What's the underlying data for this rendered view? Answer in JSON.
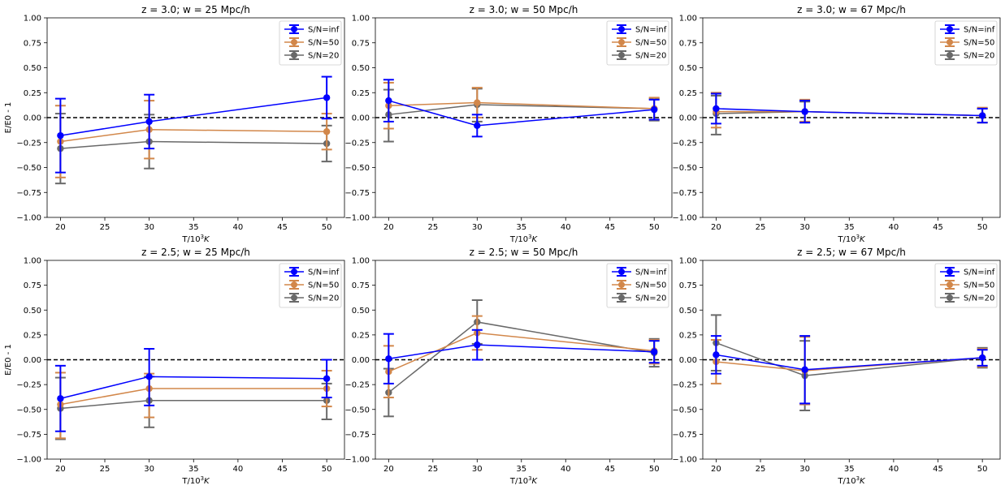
{
  "figure": {
    "background": "#ffffff",
    "series_styles": [
      {
        "color": "#0000ff"
      },
      {
        "color": "#d2874a"
      },
      {
        "color": "#696969"
      }
    ]
  },
  "chart_data": [
    {
      "type": "line",
      "title": "z = 3.0; w = 25 Mpc/h",
      "xlabel": "T/10",
      "xlabel_sup": "3",
      "xlabel_unit": "K",
      "ylabel": "E/E0 - 1",
      "xlim": [
        18.5,
        52
      ],
      "ylim": [
        -1.0,
        1.0
      ],
      "xticks": [
        "20",
        "25",
        "30",
        "35",
        "40",
        "45",
        "50"
      ],
      "yticks": [
        "−1.00",
        "−0.75",
        "−0.50",
        "−0.25",
        "0.00",
        "0.25",
        "0.50",
        "0.75",
        "1.00"
      ],
      "reference_line": 0,
      "legend_position": "top-right",
      "x": [
        20,
        30,
        50
      ],
      "series": [
        {
          "name": "S/N=inf",
          "values": [
            -0.18,
            -0.04,
            0.2
          ],
          "err_lo": [
            -0.55,
            -0.31,
            -0.01
          ],
          "err_hi": [
            0.19,
            0.23,
            0.41
          ]
        },
        {
          "name": "S/N=50",
          "values": [
            -0.24,
            -0.12,
            -0.14
          ],
          "err_lo": [
            -0.6,
            -0.41,
            -0.32
          ],
          "err_hi": [
            0.12,
            0.17,
            0.04
          ]
        },
        {
          "name": "S/N=20",
          "values": [
            -0.31,
            -0.24,
            -0.26
          ],
          "err_lo": [
            -0.66,
            -0.51,
            -0.44
          ],
          "err_hi": [
            0.04,
            0.03,
            -0.08
          ]
        }
      ]
    },
    {
      "type": "line",
      "title": "z = 3.0; w = 50 Mpc/h",
      "xlabel": "T/10",
      "xlabel_sup": "3",
      "xlabel_unit": "K",
      "ylabel": "",
      "xlim": [
        18.5,
        52
      ],
      "ylim": [
        -1.0,
        1.0
      ],
      "xticks": [
        "20",
        "25",
        "30",
        "35",
        "40",
        "45",
        "50"
      ],
      "yticks": [
        "−1.00",
        "−0.75",
        "−0.50",
        "−0.25",
        "0.00",
        "0.25",
        "0.50",
        "0.75",
        "1.00"
      ],
      "reference_line": 0,
      "legend_position": "top-right",
      "x": [
        20,
        30,
        50
      ],
      "series": [
        {
          "name": "S/N=inf",
          "values": [
            0.17,
            -0.08,
            0.08
          ],
          "err_lo": [
            -0.04,
            -0.19,
            -0.02
          ],
          "err_hi": [
            0.38,
            0.03,
            0.18
          ]
        },
        {
          "name": "S/N=50",
          "values": [
            0.12,
            0.15,
            0.09
          ],
          "err_lo": [
            -0.11,
            0.0,
            -0.02
          ],
          "err_hi": [
            0.35,
            0.3,
            0.2
          ]
        },
        {
          "name": "S/N=20",
          "values": [
            0.03,
            0.13,
            0.09
          ],
          "err_lo": [
            -0.24,
            -0.04,
            -0.03
          ],
          "err_hi": [
            0.28,
            0.29,
            0.19
          ]
        }
      ]
    },
    {
      "type": "line",
      "title": "z = 3.0; w = 67 Mpc/h",
      "xlabel": "T/10",
      "xlabel_sup": "3",
      "xlabel_unit": "K",
      "ylabel": "",
      "xlim": [
        18.5,
        52
      ],
      "ylim": [
        -1.0,
        1.0
      ],
      "xticks": [
        "20",
        "25",
        "30",
        "35",
        "40",
        "45",
        "50"
      ],
      "yticks": [
        "−1.00",
        "−0.75",
        "−0.50",
        "−0.25",
        "0.00",
        "0.25",
        "0.50",
        "0.75",
        "1.00"
      ],
      "reference_line": 0,
      "legend_position": "top-right",
      "x": [
        20,
        30,
        50
      ],
      "series": [
        {
          "name": "S/N=inf",
          "values": [
            0.09,
            0.06,
            0.02
          ],
          "err_lo": [
            -0.06,
            -0.05,
            -0.05
          ],
          "err_hi": [
            0.24,
            0.17,
            0.09
          ]
        },
        {
          "name": "S/N=50",
          "values": [
            0.06,
            0.06,
            0.02
          ],
          "err_lo": [
            -0.1,
            -0.04,
            -0.05
          ],
          "err_hi": [
            0.25,
            0.18,
            0.1
          ]
        },
        {
          "name": "S/N=20",
          "values": [
            0.04,
            0.06,
            0.02
          ],
          "err_lo": [
            -0.17,
            -0.05,
            -0.05
          ],
          "err_hi": [
            0.22,
            0.16,
            0.09
          ]
        }
      ]
    },
    {
      "type": "line",
      "title": "z = 2.5; w = 25 Mpc/h",
      "xlabel": "T/10",
      "xlabel_sup": "3",
      "xlabel_unit": "K",
      "ylabel": "E/E0 - 1",
      "xlim": [
        18.5,
        52
      ],
      "ylim": [
        -1.0,
        1.0
      ],
      "xticks": [
        "20",
        "25",
        "30",
        "35",
        "40",
        "45",
        "50"
      ],
      "yticks": [
        "−1.00",
        "−0.75",
        "−0.50",
        "−0.25",
        "0.00",
        "0.25",
        "0.50",
        "0.75",
        "1.00"
      ],
      "reference_line": 0,
      "legend_position": "top-right",
      "x": [
        20,
        30,
        50
      ],
      "series": [
        {
          "name": "S/N=inf",
          "values": [
            -0.39,
            -0.17,
            -0.19
          ],
          "err_lo": [
            -0.72,
            -0.46,
            -0.38
          ],
          "err_hi": [
            -0.06,
            0.11,
            0.0
          ]
        },
        {
          "name": "S/N=50",
          "values": [
            -0.45,
            -0.29,
            -0.29
          ],
          "err_lo": [
            -0.79,
            -0.58,
            -0.47
          ],
          "err_hi": [
            -0.13,
            -0.14,
            -0.11
          ]
        },
        {
          "name": "S/N=20",
          "values": [
            -0.49,
            -0.41,
            -0.41
          ],
          "err_lo": [
            -0.8,
            -0.68,
            -0.6
          ],
          "err_hi": [
            -0.18,
            -0.17,
            -0.24
          ]
        }
      ]
    },
    {
      "type": "line",
      "title": "z = 2.5; w = 50 Mpc/h",
      "xlabel": "T/10",
      "xlabel_sup": "3",
      "xlabel_unit": "K",
      "ylabel": "",
      "xlim": [
        18.5,
        52
      ],
      "ylim": [
        -1.0,
        1.0
      ],
      "xticks": [
        "20",
        "25",
        "30",
        "35",
        "40",
        "45",
        "50"
      ],
      "yticks": [
        "−1.00",
        "−0.75",
        "−0.50",
        "−0.25",
        "0.00",
        "0.25",
        "0.50",
        "0.75",
        "1.00"
      ],
      "reference_line": 0,
      "legend_position": "top-right",
      "x": [
        20,
        30,
        50
      ],
      "series": [
        {
          "name": "S/N=inf",
          "values": [
            0.01,
            0.15,
            0.08
          ],
          "err_lo": [
            -0.24,
            0.0,
            -0.03
          ],
          "err_hi": [
            0.26,
            0.3,
            0.19
          ]
        },
        {
          "name": "S/N=50",
          "values": [
            -0.12,
            0.27,
            0.09
          ],
          "err_lo": [
            -0.38,
            0.1,
            -0.04
          ],
          "err_hi": [
            0.14,
            0.44,
            0.2
          ]
        },
        {
          "name": "S/N=20",
          "values": [
            -0.33,
            0.38,
            0.07
          ],
          "err_lo": [
            -0.57,
            0.16,
            -0.07
          ],
          "err_hi": [
            -0.09,
            0.6,
            0.21
          ]
        }
      ]
    },
    {
      "type": "line",
      "title": "z = 2.5; w = 67 Mpc/h",
      "xlabel": "T/10",
      "xlabel_sup": "3",
      "xlabel_unit": "K",
      "ylabel": "",
      "xlim": [
        18.5,
        52
      ],
      "ylim": [
        -1.0,
        1.0
      ],
      "xticks": [
        "20",
        "25",
        "30",
        "35",
        "40",
        "45",
        "50"
      ],
      "yticks": [
        "−1.00",
        "−0.75",
        "−0.50",
        "−0.25",
        "0.00",
        "0.25",
        "0.50",
        "0.75",
        "1.00"
      ],
      "reference_line": 0,
      "legend_position": "top-right",
      "x": [
        20,
        30,
        50
      ],
      "series": [
        {
          "name": "S/N=inf",
          "values": [
            0.05,
            -0.1,
            0.02
          ],
          "err_lo": [
            -0.14,
            -0.44,
            -0.06
          ],
          "err_hi": [
            0.24,
            0.24,
            0.1
          ]
        },
        {
          "name": "S/N=50",
          "values": [
            -0.02,
            -0.11,
            0.02
          ],
          "err_lo": [
            -0.24,
            -0.45,
            -0.07
          ],
          "err_hi": [
            0.2,
            0.23,
            0.11
          ]
        },
        {
          "name": "S/N=20",
          "values": [
            0.17,
            -0.16,
            0.02
          ],
          "err_lo": [
            -0.11,
            -0.51,
            -0.08
          ],
          "err_hi": [
            0.45,
            0.19,
            0.12
          ]
        }
      ]
    }
  ]
}
